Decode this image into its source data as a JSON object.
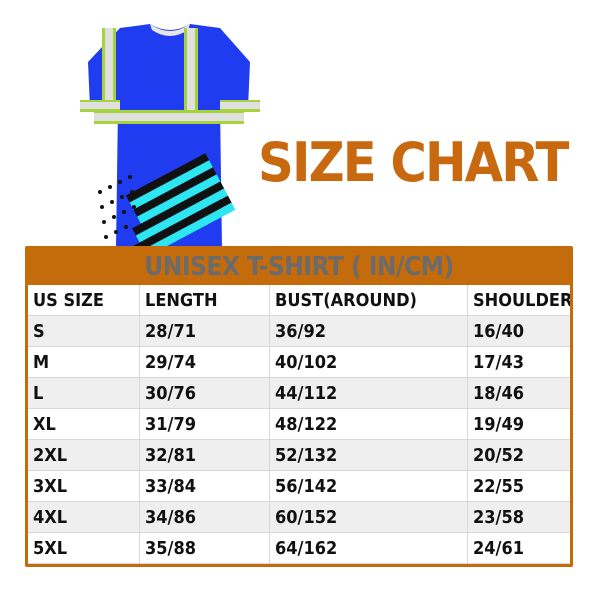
{
  "heading": "SIZE CHART",
  "table": {
    "caption": "UNISEX T-SHIRT ( IN/CM)",
    "columns": [
      "US SIZE",
      "LENGTH",
      "BUST(AROUND)",
      "SHOULDER"
    ],
    "rows": [
      [
        "S",
        "28/71",
        "36/92",
        "16/40"
      ],
      [
        "M",
        "29/74",
        "40/102",
        "17/43"
      ],
      [
        "L",
        "30/76",
        "44/112",
        "18/46"
      ],
      [
        "XL",
        "31/79",
        "48/122",
        "19/49"
      ],
      [
        "2XL",
        "32/81",
        "52/132",
        "20/52"
      ],
      [
        "3XL",
        "33/84",
        "56/142",
        "22/55"
      ],
      [
        "4XL",
        "34/86",
        "60/152",
        "23/58"
      ],
      [
        "5XL",
        "35/88",
        "64/162",
        "24/61"
      ]
    ]
  },
  "colors": {
    "accent": "#c46b0c",
    "heading": "#c8680f",
    "shirt": "#1f3cf0",
    "reflective": "#e0e0e0",
    "trim": "#a6d33a",
    "flag": "#2ee6f0"
  }
}
